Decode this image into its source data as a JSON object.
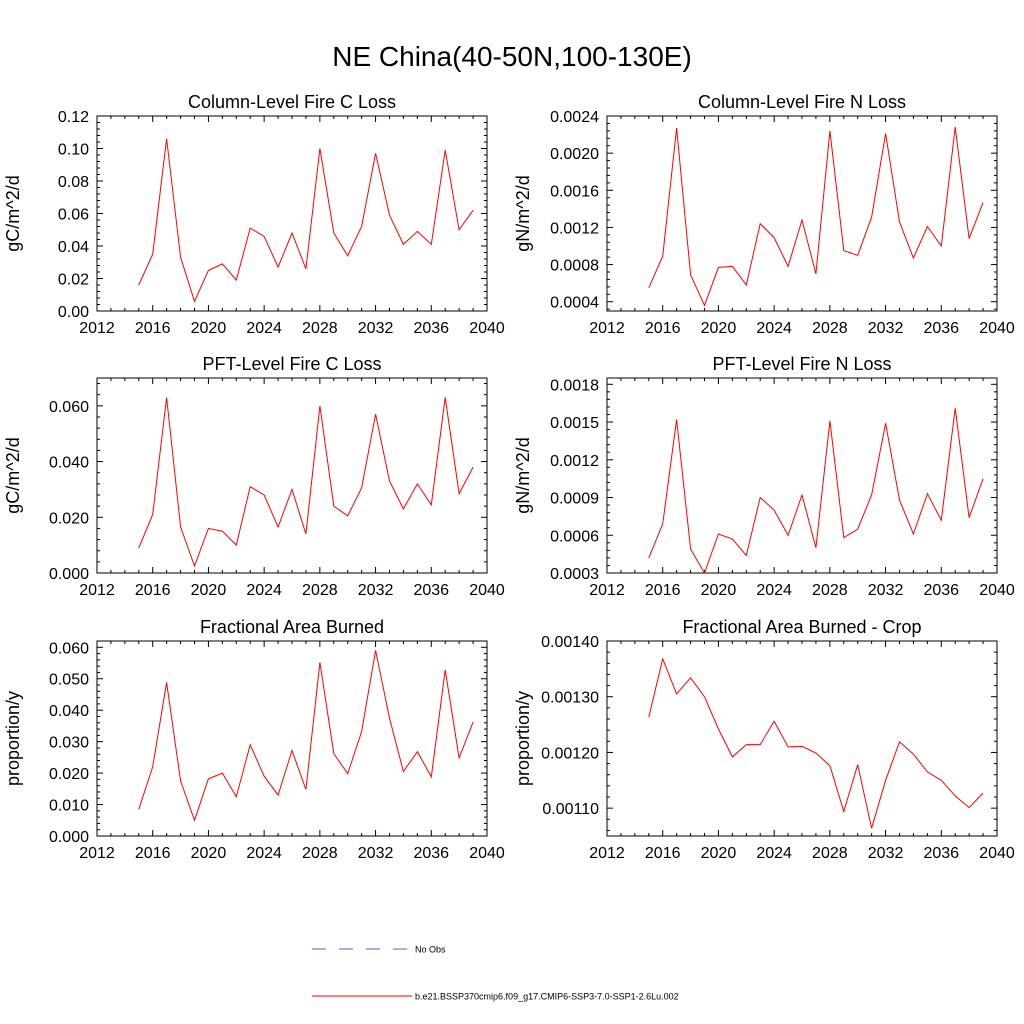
{
  "figure": {
    "title": "NE China(40-50N,100-130E)"
  },
  "legend": {
    "placement": "bottom-center",
    "entries": [
      {
        "label": "No Obs",
        "style": "dashed",
        "color": "#5a5ad0"
      },
      {
        "label": "b.e21.BSSP370cmip6.f09_g17.CMIP6-SSP3-7.0-SSP1-2.6Lu.002",
        "style": "solid",
        "color": "#ff0000"
      }
    ]
  },
  "chart_data": [
    {
      "type": "line",
      "title": "Column-Level Fire C Loss",
      "ylabel": "gC/m^2/d",
      "xlim": [
        2012,
        2040
      ],
      "xticks": [
        2012,
        2016,
        2020,
        2024,
        2028,
        2032,
        2036,
        2040
      ],
      "ylim": [
        0,
        0.12
      ],
      "yticks": [
        0,
        0.02,
        0.04,
        0.06,
        0.08,
        0.1,
        0.12
      ],
      "ytick_labels": [
        "0.00",
        "0.02",
        "0.04",
        "0.06",
        "0.08",
        "0.10",
        "0.12"
      ],
      "grid": false,
      "series": [
        {
          "color": "#ff0000",
          "x": [
            2015,
            2016,
            2017,
            2018,
            2019,
            2020,
            2021,
            2022,
            2023,
            2024,
            2025,
            2026,
            2027,
            2028,
            2029,
            2030,
            2031,
            2032,
            2033,
            2034,
            2035,
            2036,
            2037,
            2038,
            2039
          ],
          "values": [
            0.016,
            0.035,
            0.106,
            0.033,
            0.006,
            0.025,
            0.029,
            0.019,
            0.051,
            0.046,
            0.027,
            0.048,
            0.026,
            0.1,
            0.048,
            0.034,
            0.052,
            0.097,
            0.059,
            0.041,
            0.049,
            0.041,
            0.099,
            0.05,
            0.062
          ]
        }
      ]
    },
    {
      "type": "line",
      "title": "Column-Level Fire N Loss",
      "ylabel": "gN/m^2/d",
      "xlim": [
        2012,
        2040
      ],
      "xticks": [
        2012,
        2016,
        2020,
        2024,
        2028,
        2032,
        2036,
        2040
      ],
      "ylim": [
        0.0003,
        0.0024
      ],
      "yticks": [
        0.0004,
        0.0008,
        0.0012,
        0.0016,
        0.002,
        0.0024
      ],
      "ytick_labels": [
        "0.0004",
        "0.0008",
        "0.0012",
        "0.0016",
        "0.0020",
        "0.0024"
      ],
      "grid": false,
      "series": [
        {
          "color": "#ff0000",
          "x": [
            2015,
            2016,
            2017,
            2018,
            2019,
            2020,
            2021,
            2022,
            2023,
            2024,
            2025,
            2026,
            2027,
            2028,
            2029,
            2030,
            2031,
            2032,
            2033,
            2034,
            2035,
            2036,
            2037,
            2038,
            2039
          ],
          "values": [
            0.00055,
            0.00089,
            0.00227,
            0.00069,
            0.00036,
            0.00077,
            0.00078,
            0.00058,
            0.00124,
            0.00109,
            0.00078,
            0.00128,
            0.0007,
            0.00224,
            0.00095,
            0.0009,
            0.00131,
            0.00221,
            0.00126,
            0.00087,
            0.00121,
            0.001,
            0.00228,
            0.00108,
            0.00147
          ]
        }
      ]
    },
    {
      "type": "line",
      "title": "PFT-Level Fire C Loss",
      "ylabel": "gC/m^2/d",
      "xlim": [
        2012,
        2040
      ],
      "xticks": [
        2012,
        2016,
        2020,
        2024,
        2028,
        2032,
        2036,
        2040
      ],
      "ylim": [
        0,
        0.07
      ],
      "yticks": [
        0,
        0.02,
        0.04,
        0.06
      ],
      "ytick_labels": [
        "0.000",
        "0.020",
        "0.040",
        "0.060"
      ],
      "grid": false,
      "series": [
        {
          "color": "#ff0000",
          "x": [
            2015,
            2016,
            2017,
            2018,
            2019,
            2020,
            2021,
            2022,
            2023,
            2024,
            2025,
            2026,
            2027,
            2028,
            2029,
            2030,
            2031,
            2032,
            2033,
            2034,
            2035,
            2036,
            2037,
            2038,
            2039
          ],
          "values": [
            0.009,
            0.021,
            0.063,
            0.0165,
            0.0025,
            0.016,
            0.015,
            0.01,
            0.031,
            0.028,
            0.0165,
            0.03,
            0.014,
            0.06,
            0.024,
            0.0205,
            0.0305,
            0.057,
            0.033,
            0.023,
            0.032,
            0.0245,
            0.063,
            0.0285,
            0.038
          ]
        }
      ]
    },
    {
      "type": "line",
      "title": "PFT-Level Fire N Loss",
      "ylabel": "gN/m^2/d",
      "xlim": [
        2012,
        2040
      ],
      "xticks": [
        2012,
        2016,
        2020,
        2024,
        2028,
        2032,
        2036,
        2040
      ],
      "ylim": [
        0.0003,
        0.00185
      ],
      "yticks": [
        0.0003,
        0.0006,
        0.0009,
        0.0012,
        0.0015,
        0.0018
      ],
      "ytick_labels": [
        "0.0003",
        "0.0006",
        "0.0009",
        "0.0012",
        "0.0015",
        "0.0018"
      ],
      "grid": false,
      "series": [
        {
          "color": "#ff0000",
          "x": [
            2015,
            2016,
            2017,
            2018,
            2019,
            2020,
            2021,
            2022,
            2023,
            2024,
            2025,
            2026,
            2027,
            2028,
            2029,
            2030,
            2031,
            2032,
            2033,
            2034,
            2035,
            2036,
            2037,
            2038,
            2039
          ],
          "values": [
            0.00042,
            0.00069,
            0.00152,
            0.00049,
            0.0003,
            0.00061,
            0.00057,
            0.00044,
            0.0009,
            0.0008,
            0.0006,
            0.00092,
            0.0005,
            0.00151,
            0.00058,
            0.00065,
            0.00092,
            0.00149,
            0.00088,
            0.00061,
            0.00093,
            0.00072,
            0.00161,
            0.00074,
            0.00105
          ]
        }
      ]
    },
    {
      "type": "line",
      "title": "Fractional Area Burned",
      "ylabel": "proportion/y",
      "xlim": [
        2012,
        2040
      ],
      "xticks": [
        2012,
        2016,
        2020,
        2024,
        2028,
        2032,
        2036,
        2040
      ],
      "ylim": [
        0,
        0.062
      ],
      "yticks": [
        0,
        0.01,
        0.02,
        0.03,
        0.04,
        0.05,
        0.06
      ],
      "ytick_labels": [
        "0.000",
        "0.010",
        "0.020",
        "0.030",
        "0.040",
        "0.050",
        "0.060"
      ],
      "grid": false,
      "series": [
        {
          "color": "#ff0000",
          "x": [
            2015,
            2016,
            2017,
            2018,
            2019,
            2020,
            2021,
            2022,
            2023,
            2024,
            2025,
            2026,
            2027,
            2028,
            2029,
            2030,
            2031,
            2032,
            2033,
            2034,
            2035,
            2036,
            2037,
            2038,
            2039
          ],
          "values": [
            0.0085,
            0.022,
            0.0488,
            0.0175,
            0.005,
            0.0182,
            0.02,
            0.0125,
            0.029,
            0.019,
            0.013,
            0.0272,
            0.0148,
            0.0552,
            0.0262,
            0.0198,
            0.0332,
            0.059,
            0.0375,
            0.0205,
            0.0268,
            0.0188,
            0.0528,
            0.0248,
            0.0362
          ]
        }
      ]
    },
    {
      "type": "line",
      "title": "Fractional Area Burned - Crop",
      "ylabel": "proportion/y",
      "xlim": [
        2012,
        2040
      ],
      "xticks": [
        2012,
        2016,
        2020,
        2024,
        2028,
        2032,
        2036,
        2040
      ],
      "ylim": [
        0.00105,
        0.0014
      ],
      "yticks": [
        0.0011,
        0.0012,
        0.0013,
        0.0014
      ],
      "ytick_labels": [
        "0.00110",
        "0.00120",
        "0.00130",
        "0.00140"
      ],
      "grid": false,
      "series": [
        {
          "color": "#ff0000",
          "x": [
            2015,
            2016,
            2017,
            2018,
            2019,
            2020,
            2021,
            2022,
            2023,
            2024,
            2025,
            2026,
            2027,
            2028,
            2029,
            2030,
            2031,
            2032,
            2033,
            2034,
            2035,
            2036,
            2037,
            2038,
            2039
          ],
          "values": [
            0.001263,
            0.001368,
            0.001305,
            0.001334,
            0.0013,
            0.001242,
            0.001192,
            0.001214,
            0.001214,
            0.001256,
            0.00121,
            0.001211,
            0.001199,
            0.001176,
            0.001094,
            0.001178,
            0.001064,
            0.00115,
            0.001219,
            0.001197,
            0.001165,
            0.00115,
            0.001122,
            0.001101,
            0.001127
          ]
        }
      ]
    }
  ]
}
